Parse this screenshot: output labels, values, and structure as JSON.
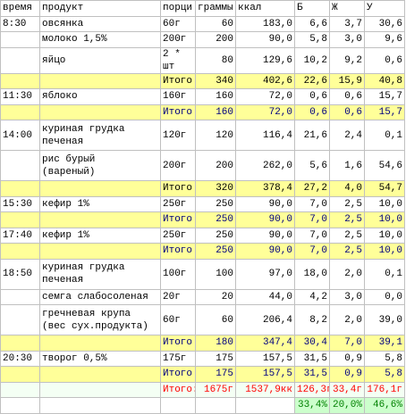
{
  "header": [
    "время",
    "продукт",
    "порци",
    "граммы",
    "ккал",
    "Б",
    "Ж",
    "У"
  ],
  "rows": [
    {
      "cells": [
        "8:30",
        "овсянка",
        "60г",
        "60",
        "183,0",
        "6,6",
        "3,7",
        "30,6"
      ]
    },
    {
      "cells": [
        null,
        "молоко 1,5%",
        "200г",
        "200",
        "90,0",
        "5,8",
        "3,0",
        "9,6"
      ]
    },
    {
      "cells": [
        null,
        "яйцо",
        "2 * шт",
        "80",
        "129,6",
        "10,2",
        "9,2",
        "0,6"
      ]
    },
    {
      "cells": [
        null,
        null,
        "Итого",
        "340",
        "402,6",
        "22,6",
        "15,9",
        "40,8"
      ],
      "bg": "#ffff99",
      "color": "#000000"
    },
    {
      "cells": [
        "11:30",
        "яблоко",
        "160г",
        "160",
        "72,0",
        "0,6",
        "0,6",
        "15,7"
      ]
    },
    {
      "cells": [
        null,
        null,
        "Итого",
        "160",
        "72,0",
        "0,6",
        "0,6",
        "15,7"
      ],
      "bg": "#ffff99",
      "color": "#000080"
    },
    {
      "cells": [
        "14:00",
        "куриная грудка\nпеченая",
        "120г",
        "120",
        "116,4",
        "21,6",
        "2,4",
        "0,1"
      ]
    },
    {
      "cells": [
        null,
        "рис бурый\n(вареный)",
        "200г",
        "200",
        "262,0",
        "5,6",
        "1,6",
        "54,6"
      ]
    },
    {
      "cells": [
        null,
        null,
        "Итого",
        "320",
        "378,4",
        "27,2",
        "4,0",
        "54,7"
      ],
      "bg": "#ffff99",
      "color": "#000000"
    },
    {
      "cells": [
        "15:30",
        "кефир 1%",
        "250г",
        "250",
        "90,0",
        "7,0",
        "2,5",
        "10,0"
      ]
    },
    {
      "cells": [
        null,
        null,
        "Итого",
        "250",
        "90,0",
        "7,0",
        "2,5",
        "10,0"
      ],
      "bg": "#ffff99",
      "color": "#000080"
    },
    {
      "cells": [
        "17:40",
        "кефир 1%",
        "250г",
        "250",
        "90,0",
        "7,0",
        "2,5",
        "10,0"
      ]
    },
    {
      "cells": [
        null,
        null,
        "Итого",
        "250",
        "90,0",
        "7,0",
        "2,5",
        "10,0"
      ],
      "bg": "#ffff99",
      "color": "#000080"
    },
    {
      "cells": [
        "18:50",
        "куриная грудка\nпеченая",
        "100г",
        "100",
        "97,0",
        "18,0",
        "2,0",
        "0,1"
      ]
    },
    {
      "cells": [
        null,
        "семга слабосоленая",
        "20г",
        "20",
        "44,0",
        "4,2",
        "3,0",
        "0,0"
      ]
    },
    {
      "cells": [
        null,
        "гречневая крупа\n(вес сух.продукта)",
        "60г",
        "60",
        "206,4",
        "8,2",
        "2,0",
        "39,0"
      ]
    },
    {
      "cells": [
        null,
        null,
        "Итого",
        "180",
        "347,4",
        "30,4",
        "7,0",
        "39,1"
      ],
      "bg": "#ffff99",
      "color": "#000080"
    },
    {
      "cells": [
        "20:30",
        "творог 0,5%",
        "175г",
        "175",
        "157,5",
        "31,5",
        "0,9",
        "5,8"
      ]
    },
    {
      "cells": [
        null,
        null,
        "Итого",
        "175",
        "157,5",
        "31,5",
        "0,9",
        "5,8"
      ],
      "bg": "#ffff99",
      "color": "#000080"
    },
    {
      "cells": [
        null,
        null,
        "Итого:",
        "1675г",
        "1537,9кк",
        "126,3г",
        "33,4г",
        "176,1г"
      ],
      "bg": "#f4fff4",
      "color": "#ff0000"
    },
    {
      "cells": [
        null,
        null,
        null,
        null,
        null,
        "33,4%",
        "20,0%",
        "46,6%"
      ],
      "color": "#008000",
      "cell_bg": [
        null,
        null,
        null,
        null,
        null,
        "#ccffcc",
        "#ccffcc",
        "#ccffcc"
      ]
    }
  ]
}
